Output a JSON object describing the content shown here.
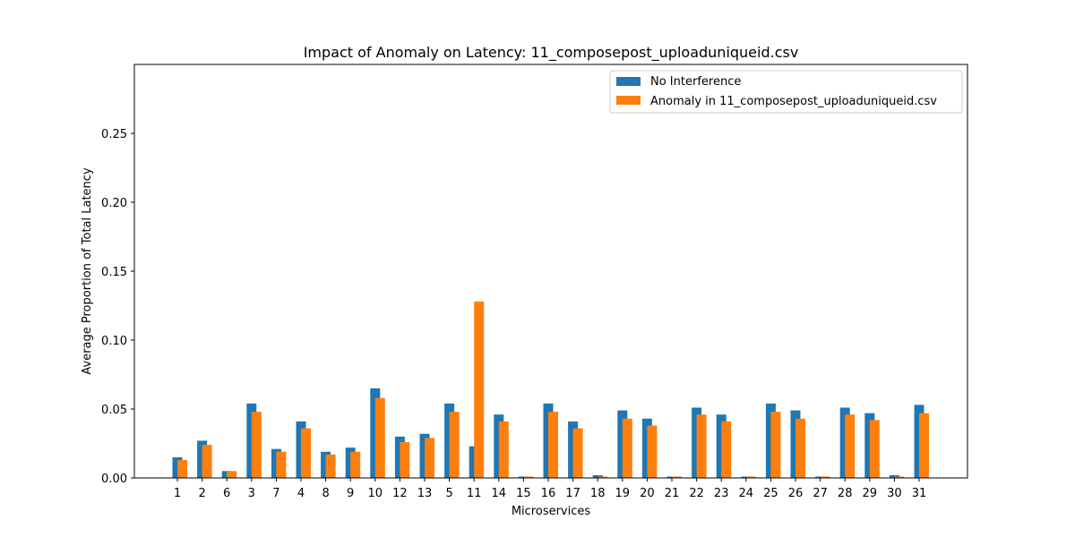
{
  "chart_data": {
    "type": "bar",
    "title": "Impact of Anomaly on Latency: 11_composepost_uploaduniqueid.csv",
    "xlabel": "Microservices",
    "ylabel": "Average Proportion of Total Latency",
    "ylim": [
      0,
      0.3
    ],
    "yticks": [
      "0.00",
      "0.05",
      "0.10",
      "0.15",
      "0.20",
      "0.25"
    ],
    "ytick_values": [
      0,
      0.05,
      0.1,
      0.15,
      0.2,
      0.25
    ],
    "grid": false,
    "legend_position": "top-right",
    "categories": [
      "1",
      "2",
      "6",
      "3",
      "7",
      "4",
      "8",
      "9",
      "10",
      "12",
      "13",
      "5",
      "11",
      "14",
      "15",
      "16",
      "17",
      "18",
      "19",
      "20",
      "21",
      "22",
      "23",
      "24",
      "25",
      "26",
      "27",
      "28",
      "29",
      "30",
      "31"
    ],
    "series": [
      {
        "name": "No Interference",
        "color": "#1f77b4",
        "values": [
          0.015,
          0.027,
          0.005,
          0.054,
          0.021,
          0.041,
          0.019,
          0.022,
          0.065,
          0.03,
          0.032,
          0.054,
          0.023,
          0.046,
          0.001,
          0.054,
          0.041,
          0.002,
          0.049,
          0.043,
          0.001,
          0.051,
          0.046,
          0.001,
          0.054,
          0.049,
          0.001,
          0.051,
          0.047,
          0.002,
          0.053
        ]
      },
      {
        "name": "Anomaly in 11_composepost_uploaduniqueid.csv",
        "color": "#ff7f0e",
        "values": [
          0.013,
          0.024,
          0.005,
          0.048,
          0.019,
          0.036,
          0.017,
          0.019,
          0.058,
          0.026,
          0.029,
          0.048,
          0.128,
          0.041,
          0.001,
          0.048,
          0.036,
          0.001,
          0.043,
          0.038,
          0.001,
          0.046,
          0.041,
          0.001,
          0.048,
          0.043,
          0.001,
          0.046,
          0.042,
          0.001,
          0.047
        ]
      }
    ]
  }
}
